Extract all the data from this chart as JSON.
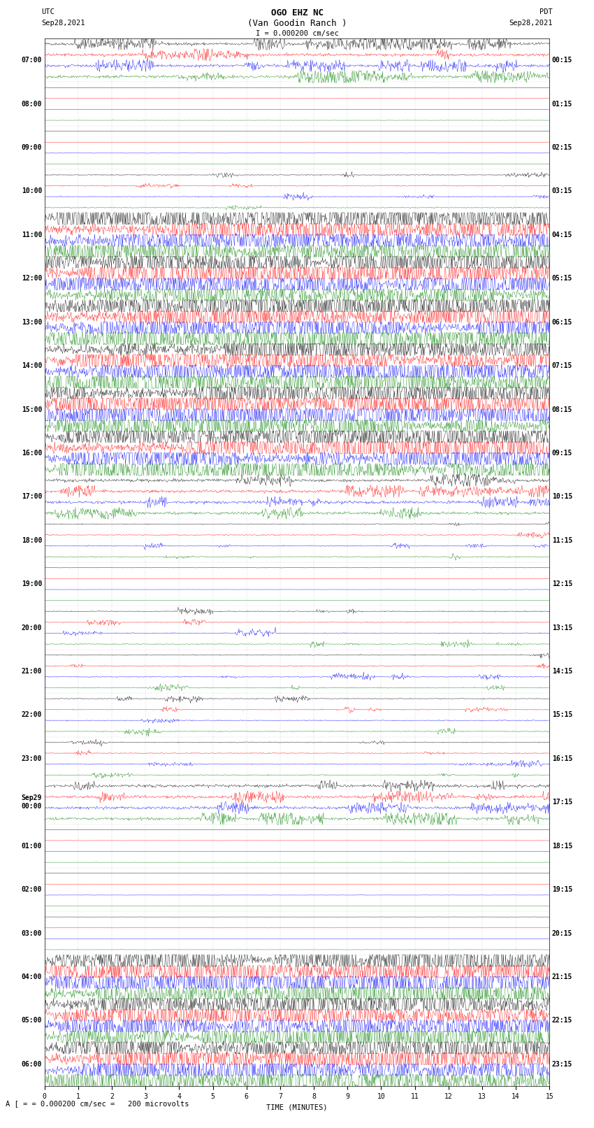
{
  "title_line1": "OGO EHZ NC",
  "title_line2": "(Van Goodin Ranch )",
  "scale_text": "I = 0.000200 cm/sec",
  "bottom_scale_text": "= 0.000200 cm/sec =   200 microvolts",
  "utc_label": "UTC",
  "utc_date": "Sep28,2021",
  "pdt_label": "PDT",
  "pdt_date": "Sep28,2021",
  "xlabel": "TIME (MINUTES)",
  "left_times_utc": [
    "07:00",
    "08:00",
    "09:00",
    "10:00",
    "11:00",
    "12:00",
    "13:00",
    "14:00",
    "15:00",
    "16:00",
    "17:00",
    "18:00",
    "19:00",
    "20:00",
    "21:00",
    "22:00",
    "23:00",
    "Sep29\n00:00",
    "01:00",
    "02:00",
    "03:00",
    "04:00",
    "05:00",
    "06:00"
  ],
  "right_times_pdt": [
    "00:15",
    "01:15",
    "02:15",
    "03:15",
    "04:15",
    "05:15",
    "06:15",
    "07:15",
    "08:15",
    "09:15",
    "10:15",
    "11:15",
    "12:15",
    "13:15",
    "14:15",
    "15:15",
    "16:15",
    "17:15",
    "18:15",
    "19:15",
    "20:15",
    "21:15",
    "22:15",
    "23:15"
  ],
  "colors": [
    "black",
    "red",
    "blue",
    "green"
  ],
  "background_color": "white",
  "n_rows": 24,
  "n_minutes": 15,
  "samples_per_minute": 60,
  "title_fontsize": 9,
  "label_fontsize": 7.5,
  "tick_fontsize": 7,
  "activity": [
    2,
    0,
    0,
    1,
    3,
    3,
    3,
    3,
    3,
    3,
    2,
    1,
    0,
    1,
    1,
    1,
    1,
    2,
    0,
    0,
    0,
    3,
    3,
    3
  ]
}
